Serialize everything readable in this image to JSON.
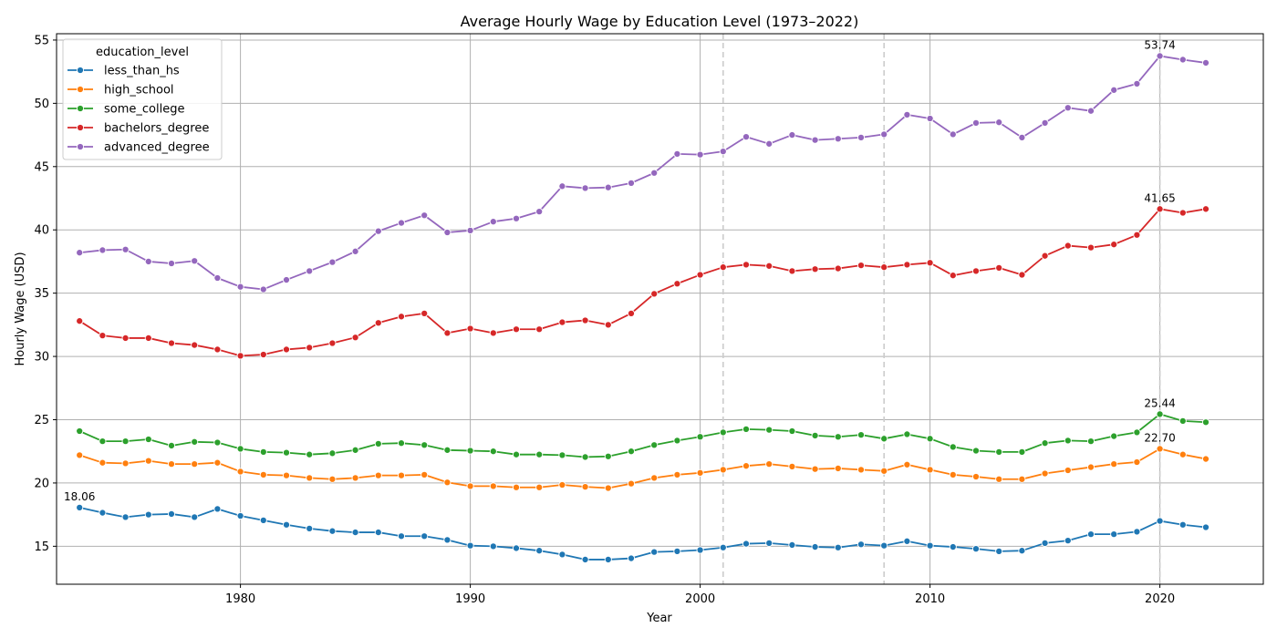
{
  "chart_data": {
    "type": "line",
    "title": "Average Hourly Wage by Education Level (1973–2022)",
    "xlabel": "Year",
    "ylabel": "Hourly Wage (USD)",
    "xlim": [
      1972,
      2024.5
    ],
    "ylim": [
      12,
      55.5
    ],
    "xticks": [
      1980,
      1990,
      2000,
      2010,
      2020
    ],
    "yticks": [
      15,
      20,
      25,
      30,
      35,
      40,
      45,
      50,
      55
    ],
    "grid": true,
    "legend": {
      "title": "education_level",
      "placement": "upper left"
    },
    "reference_lines": [
      2001,
      2008,
      2020
    ],
    "x": [
      1973,
      1974,
      1975,
      1976,
      1977,
      1978,
      1979,
      1980,
      1981,
      1982,
      1983,
      1984,
      1985,
      1986,
      1987,
      1988,
      1989,
      1990,
      1991,
      1992,
      1993,
      1994,
      1995,
      1996,
      1997,
      1998,
      1999,
      2000,
      2001,
      2002,
      2003,
      2004,
      2005,
      2006,
      2007,
      2008,
      2009,
      2010,
      2011,
      2012,
      2013,
      2014,
      2015,
      2016,
      2017,
      2018,
      2019,
      2020,
      2021,
      2022
    ],
    "series": [
      {
        "name": "less_than_hs",
        "color": "#1f77b4",
        "values": [
          18.06,
          17.65,
          17.3,
          17.5,
          17.55,
          17.3,
          17.95,
          17.4,
          17.05,
          16.7,
          16.4,
          16.2,
          16.1,
          16.1,
          15.8,
          15.8,
          15.5,
          15.05,
          15.0,
          14.85,
          14.65,
          14.35,
          13.95,
          13.95,
          14.05,
          14.55,
          14.6,
          14.7,
          14.9,
          15.2,
          15.25,
          15.1,
          14.95,
          14.9,
          15.15,
          15.05,
          15.4,
          15.05,
          14.95,
          14.8,
          14.6,
          14.65,
          15.25,
          15.45,
          15.95,
          15.95,
          16.15,
          17.0,
          16.7,
          16.5
        ]
      },
      {
        "name": "high_school",
        "color": "#ff7f0e",
        "values": [
          22.2,
          21.6,
          21.55,
          21.75,
          21.5,
          21.5,
          21.6,
          20.9,
          20.65,
          20.6,
          20.4,
          20.3,
          20.4,
          20.6,
          20.6,
          20.65,
          20.05,
          19.75,
          19.75,
          19.65,
          19.65,
          19.85,
          19.7,
          19.6,
          19.95,
          20.4,
          20.65,
          20.8,
          21.05,
          21.35,
          21.5,
          21.3,
          21.1,
          21.15,
          21.05,
          20.95,
          21.45,
          21.05,
          20.65,
          20.5,
          20.3,
          20.3,
          20.75,
          21.0,
          21.25,
          21.5,
          21.65,
          22.7,
          22.25,
          21.9
        ]
      },
      {
        "name": "some_college",
        "color": "#2ca02c",
        "values": [
          24.1,
          23.3,
          23.3,
          23.45,
          22.95,
          23.25,
          23.2,
          22.7,
          22.45,
          22.4,
          22.25,
          22.35,
          22.6,
          23.1,
          23.15,
          23.0,
          22.6,
          22.55,
          22.5,
          22.25,
          22.25,
          22.2,
          22.05,
          22.1,
          22.5,
          23.0,
          23.35,
          23.65,
          24.0,
          24.25,
          24.2,
          24.1,
          23.75,
          23.65,
          23.8,
          23.5,
          23.85,
          23.5,
          22.85,
          22.55,
          22.45,
          22.45,
          23.15,
          23.35,
          23.3,
          23.7,
          24.0,
          25.44,
          24.9,
          24.8
        ]
      },
      {
        "name": "bachelors_degree",
        "color": "#d62728",
        "values": [
          32.8,
          31.65,
          31.45,
          31.45,
          31.05,
          30.9,
          30.55,
          30.05,
          30.15,
          30.55,
          30.7,
          31.05,
          31.5,
          32.65,
          33.15,
          33.4,
          31.85,
          32.2,
          31.85,
          32.15,
          32.15,
          32.7,
          32.85,
          32.5,
          33.4,
          34.95,
          35.75,
          36.45,
          37.05,
          37.25,
          37.15,
          36.75,
          36.9,
          36.95,
          37.2,
          37.05,
          37.25,
          37.4,
          36.4,
          36.75,
          37.0,
          36.45,
          37.95,
          38.75,
          38.6,
          38.85,
          39.6,
          41.65,
          41.35,
          41.65
        ]
      },
      {
        "name": "advanced_degree",
        "color": "#9467bd",
        "values": [
          38.2,
          38.4,
          38.45,
          37.5,
          37.35,
          37.55,
          36.2,
          35.5,
          35.3,
          36.05,
          36.75,
          37.45,
          38.3,
          39.9,
          40.55,
          41.15,
          39.8,
          39.95,
          40.65,
          40.9,
          41.45,
          43.45,
          43.3,
          43.35,
          43.7,
          44.5,
          46.0,
          45.95,
          46.2,
          47.35,
          46.8,
          47.5,
          47.1,
          47.2,
          47.3,
          47.55,
          49.1,
          48.8,
          47.55,
          48.45,
          48.5,
          47.3,
          48.45,
          49.65,
          49.4,
          51.05,
          51.55,
          53.74,
          53.45,
          53.2
        ]
      }
    ],
    "annotations": [
      {
        "series": "less_than_hs",
        "x": 1973,
        "text": "18.06"
      },
      {
        "series": "high_school",
        "x": 2020,
        "text": "22.70"
      },
      {
        "series": "some_college",
        "x": 2020,
        "text": "25.44"
      },
      {
        "series": "bachelors_degree",
        "x": 2020,
        "text": "41.65"
      },
      {
        "series": "advanced_degree",
        "x": 2020,
        "text": "53.74"
      }
    ]
  }
}
